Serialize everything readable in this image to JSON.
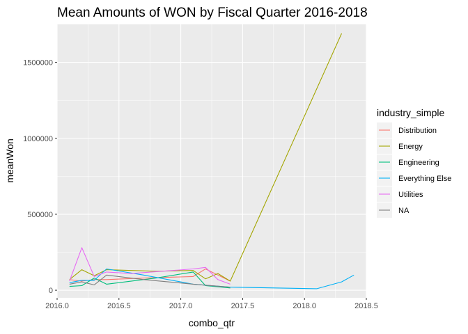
{
  "chart_data": {
    "type": "line",
    "title": "Mean Amounts of WON by Fiscal Quarter 2016-2018",
    "xlabel": "combo_qtr",
    "ylabel": "meanWon",
    "xlim": [
      2016.0,
      2018.5
    ],
    "ylim": [
      -50000,
      1750000
    ],
    "x_ticks": [
      2016.0,
      2016.5,
      2017.0,
      2017.5,
      2018.0,
      2018.5
    ],
    "x_tick_labels": [
      "2016.0",
      "2016.5",
      "2017.0",
      "2017.5",
      "2018.0",
      "2018.5"
    ],
    "y_ticks": [
      0,
      500000,
      1000000,
      1500000
    ],
    "y_tick_labels": [
      "0",
      "500000",
      "1000000",
      "1500000"
    ],
    "grid": true,
    "legend_title": "industry_simple",
    "legend_position": "right",
    "series": [
      {
        "name": "Distribution",
        "color": "#F8766D",
        "x": [
          2016.1,
          2016.2,
          2016.3,
          2016.4,
          2016.7,
          2017.1,
          2017.2,
          2017.3,
          2017.4
        ],
        "y": [
          70000,
          60000,
          70000,
          70000,
          80000,
          90000,
          140000,
          100000,
          60000
        ]
      },
      {
        "name": "Energy",
        "color": "#A3A500",
        "x": [
          2016.1,
          2016.2,
          2016.3,
          2016.4,
          2016.8,
          2017.1,
          2017.2,
          2017.3,
          2017.4,
          2018.3
        ],
        "y": [
          70000,
          135000,
          95000,
          135000,
          125000,
          130000,
          75000,
          110000,
          60000,
          1690000
        ]
      },
      {
        "name": "Engineering",
        "color": "#00BF7D",
        "x": [
          2016.1,
          2016.2,
          2016.3,
          2016.4,
          2016.8,
          2017.1,
          2017.2,
          2017.4
        ],
        "y": [
          25000,
          30000,
          80000,
          40000,
          80000,
          120000,
          30000,
          15000
        ]
      },
      {
        "name": "Everything Else",
        "color": "#00B0F6",
        "x": [
          2016.1,
          2016.2,
          2016.3,
          2016.4,
          2016.7,
          2017.1,
          2017.4,
          2018.1,
          2018.3,
          2018.4
        ],
        "y": [
          50000,
          65000,
          65000,
          140000,
          100000,
          40000,
          20000,
          10000,
          55000,
          100000
        ]
      },
      {
        "name": "Utilities",
        "color": "#E76BF3",
        "x": [
          2016.1,
          2016.2,
          2016.3,
          2016.4,
          2016.6,
          2017.1,
          2017.2,
          2017.3,
          2017.4
        ],
        "y": [
          60000,
          280000,
          90000,
          120000,
          110000,
          140000,
          150000,
          70000,
          40000
        ]
      },
      {
        "name": "NA",
        "color": "#7F7F7F",
        "x": [
          2016.1,
          2016.2,
          2016.3,
          2016.4,
          2016.7,
          2017.1,
          2017.4
        ],
        "y": [
          40000,
          55000,
          35000,
          100000,
          70000,
          40000,
          20000
        ]
      }
    ]
  }
}
